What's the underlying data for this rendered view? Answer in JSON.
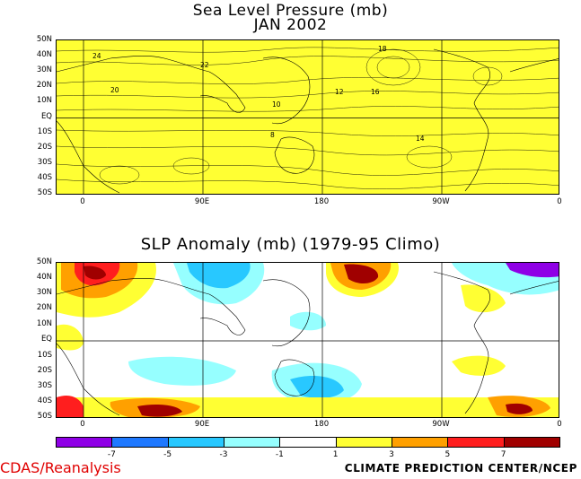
{
  "map": {
    "title_line1": "Sea Level Pressure (mb)",
    "title_line2": "JAN 2002",
    "anomaly_title": "SLP Anomaly (mb) (1979-95 Climo)",
    "lat_labels": [
      "50N",
      "40N",
      "30N",
      "20N",
      "10N",
      "EQ",
      "10S",
      "20S",
      "30S",
      "40S",
      "50S"
    ],
    "lon_labels": [
      "0",
      "90E",
      "180",
      "90W",
      "0"
    ],
    "slp_contour_labels": [
      "24",
      "22",
      "20",
      "18",
      "16",
      "14",
      "12",
      "10",
      "8"
    ],
    "colorbar": {
      "colors": [
        "#8f00e6",
        "#1e78ff",
        "#28c8ff",
        "#96ffff",
        "#ffffff",
        "#ffff33",
        "#ffa000",
        "#ff1e1e",
        "#a00000"
      ],
      "tick_labels": [
        "-7",
        "-5",
        "-3",
        "-1",
        "1",
        "3",
        "5",
        "7"
      ]
    },
    "credit_left": "CDAS/Reanalysis",
    "credit_right": "CLIMATE PREDICTION CENTER/NCEP",
    "colors": {
      "slp_fill": "#ffff33",
      "credit_left": "#e00000"
    }
  }
}
